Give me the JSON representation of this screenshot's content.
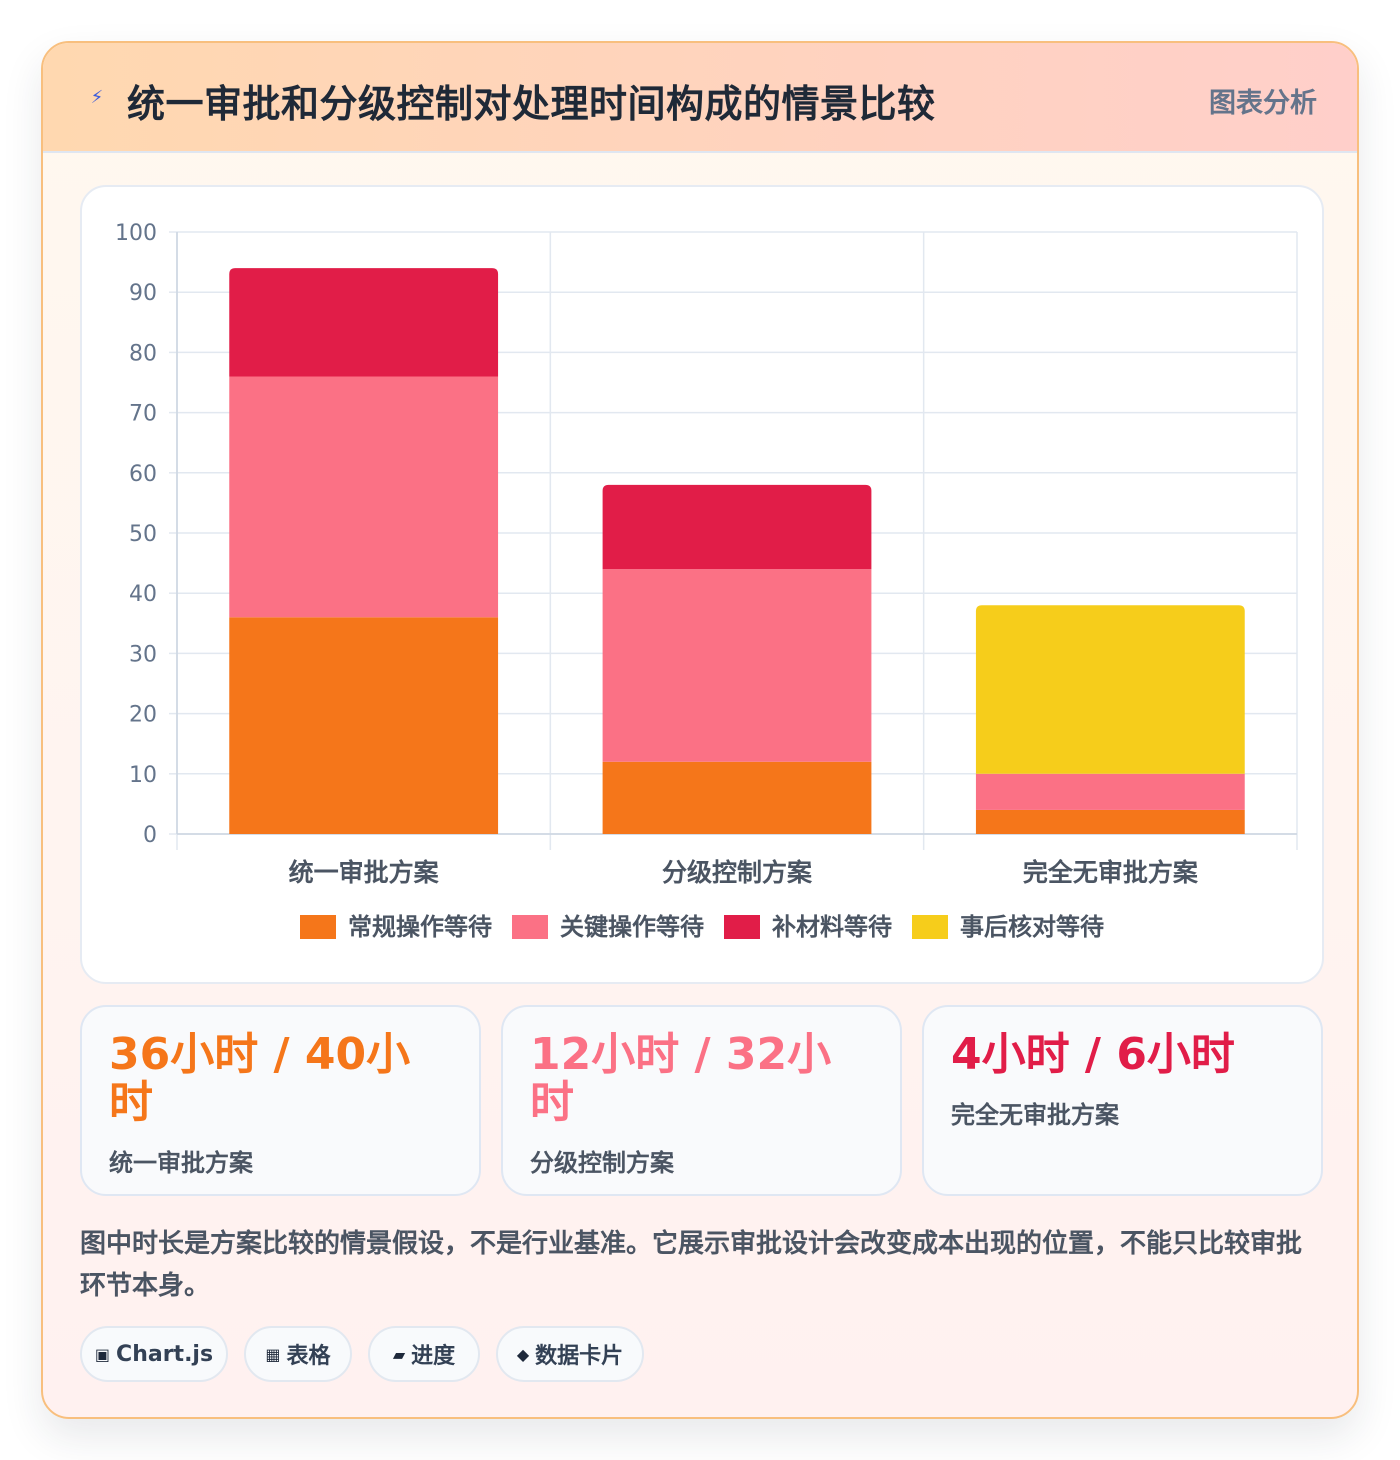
{
  "header": {
    "icon": "lightning-icon",
    "title": "统一审批和分级控制对处理时间构成的情景比较",
    "badge": "图表分析"
  },
  "chart_data": {
    "type": "bar",
    "stacked": true,
    "categories": [
      "统一审批方案",
      "分级控制方案",
      "完全无审批方案"
    ],
    "series": [
      {
        "name": "常规操作等待",
        "color": "#f5761a",
        "values": [
          36,
          12,
          4
        ]
      },
      {
        "name": "关键操作等待",
        "color": "#fb7185",
        "values": [
          40,
          32,
          6
        ]
      },
      {
        "name": "补材料等待",
        "color": "#e11d48",
        "values": [
          18,
          14,
          0
        ]
      },
      {
        "name": "事后核对等待",
        "color": "#f6cd1b",
        "values": [
          0,
          0,
          28
        ]
      }
    ],
    "ylim": [
      0,
      100
    ],
    "yticks": [
      0,
      10,
      20,
      30,
      40,
      50,
      60,
      70,
      80,
      90,
      100
    ],
    "grid": true,
    "legend": "bottom"
  },
  "stats": [
    {
      "value": "36小时 / 40小时",
      "label": "统一审批方案",
      "color": "#f5761a"
    },
    {
      "value": "12小时 / 32小时",
      "label": "分级控制方案",
      "color": "#fb7185"
    },
    {
      "value": "4小时 / 6小时",
      "label": "完全无审批方案",
      "color": "#e11d48"
    }
  ],
  "note": "图中时长是方案比较的情景假设，不是行业基准。它展示审批设计会改变成本出现的位置，不能只比较审批环节本身。",
  "chips": [
    {
      "icon": "▣",
      "label": "Chart.js"
    },
    {
      "icon": "▦",
      "label": "表格"
    },
    {
      "icon": "▰",
      "label": "进度"
    },
    {
      "icon": "◆",
      "label": "数据卡片"
    }
  ]
}
